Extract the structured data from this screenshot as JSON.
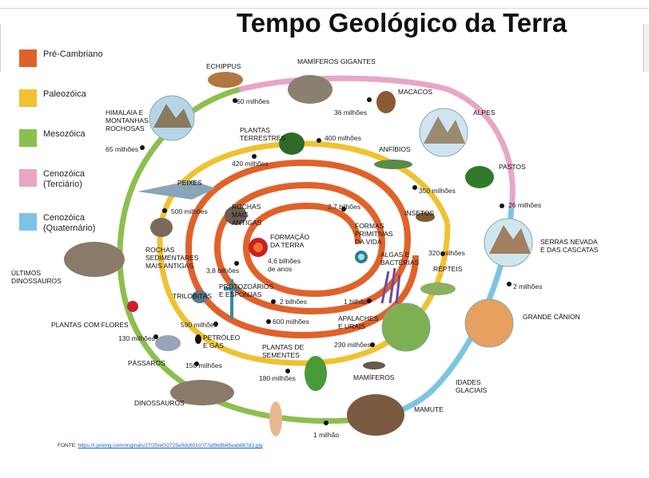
{
  "title": "Tempo Geológico da Terra",
  "legend": [
    {
      "label": "Pré-Cambriano",
      "color": "#e0622a"
    },
    {
      "label": "Paleozóica",
      "color": "#f0c232"
    },
    {
      "label": "Mesozóica",
      "color": "#8cbf4e"
    },
    {
      "label": "Cenozóica\n(Terciário)",
      "color": "#e8a6c4"
    },
    {
      "label": "Cenozóica\n(Quaternário)",
      "color": "#7cc4e4"
    }
  ],
  "time_labels": [
    "60 milhões",
    "36 milhões",
    "400 milhões",
    "420 milhões",
    "65 milhões",
    "350 milhões",
    "26 milhões",
    "500 milhões",
    "2,7 bilhões",
    "320 milhões",
    "3,8 bilhões",
    "4,6 bilhões\nde anos",
    "2 milhões",
    "2 bilhões",
    "1 bilhão",
    "590 milhões",
    "600 milhões",
    "130 milhões",
    "230 milhões",
    "150 milhões",
    "180 milhões",
    "1 milhão"
  ],
  "event_labels": [
    "ECHIPPUS",
    "MAMÍFEROS GIGANTES",
    "MACACOS",
    "HIMALAIA E\nMONTANHAS\nROCHOSAS",
    "PLANTAS\nTERRESTRES",
    "ANFÍBIOS",
    "ALPES",
    "PASTOS",
    "PEIXES",
    "ROCHAS\nMAIS\nANTIGAS",
    "FORMAÇÃO\nDA TERRA",
    "FORMAS\nPRIMITIVAS\nDA VIDA",
    "INSETOS",
    "ROCHAS\nSEDIMENTARES\nMAIS ANTIGAS",
    "ALGAS E\nBACTÉRIAS",
    "SERRAS NEVADA\nE DAS CASCATAS",
    "RÉPTEIS",
    "ÚLTIMOS\nDINOSSAUROS",
    "PROTOZOÁRIOS\nE ESPONJAS",
    "TRILOBITAS",
    "GRANDE CÂNION",
    "APALACHES\nE URAIS",
    "PLANTAS COM FLORES",
    "PETRÓLEO\nE GÁS",
    "PÁSSAROS",
    "PLANTAS DE\nSEMENTES",
    "MAMÍFEROS",
    "IDADES\nGLACIAIS",
    "DINOSSAUROS",
    "MAMUTE"
  ],
  "footer": {
    "prefix": "FONTE: ",
    "url": "https://i.pinimg.com/originals/27/25/e0/2725e0dc601c077af9ddb45eab867d3.jpg"
  }
}
